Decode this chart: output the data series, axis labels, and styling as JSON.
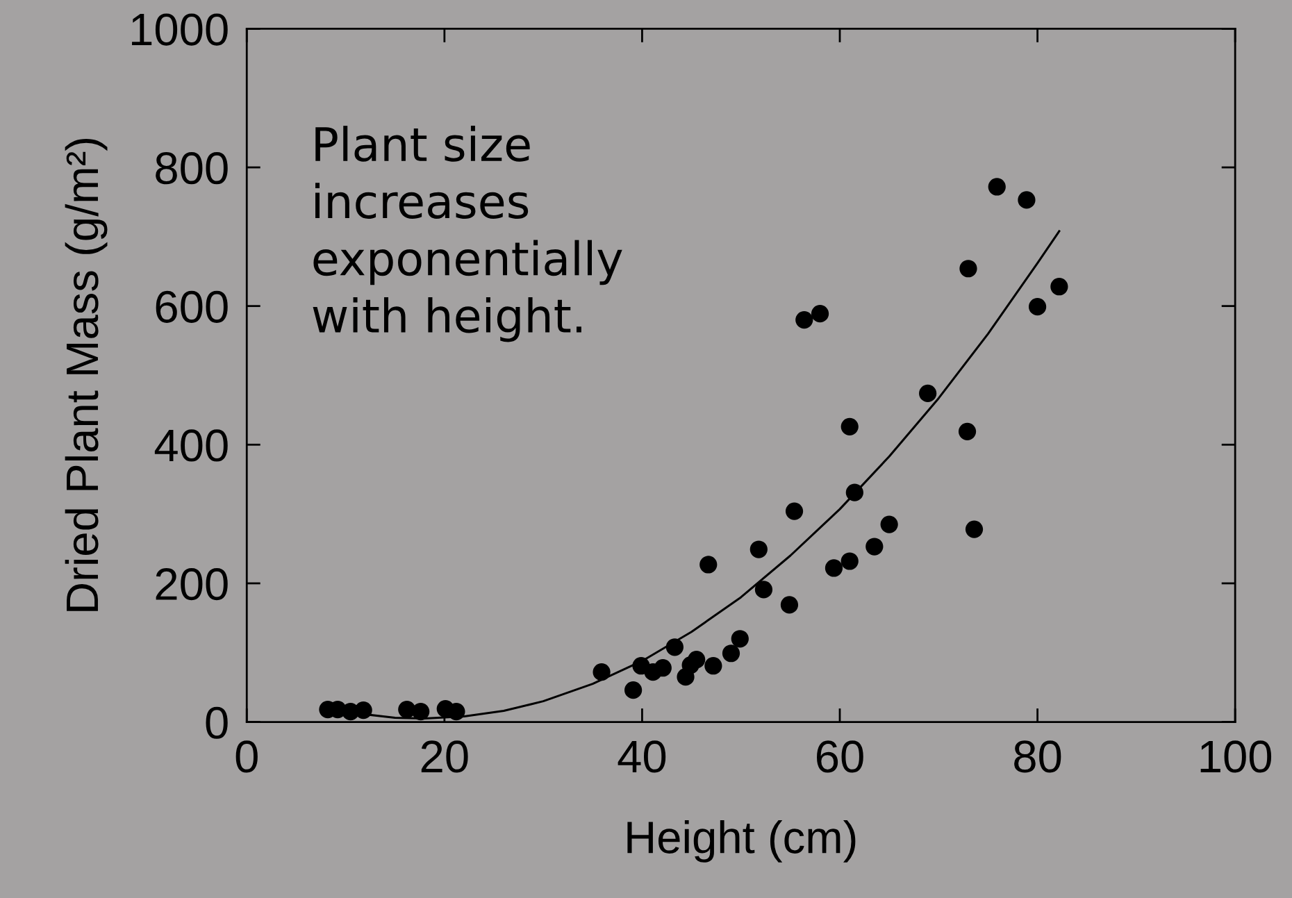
{
  "chart_data": {
    "type": "scatter",
    "xlabel": "Height (cm)",
    "ylabel": "Dried Plant Mass (g/m²)",
    "xlim": [
      0,
      100
    ],
    "xticks": [
      0,
      20,
      40,
      60,
      80,
      100
    ],
    "ylim": [
      0,
      1000
    ],
    "yticks": [
      0,
      200,
      400,
      600,
      800,
      1000
    ],
    "grid": false,
    "legend": false,
    "marker": "circle",
    "annotations": [
      "Plant size\nincreases\nexponentially\nwith height."
    ],
    "series": [
      {
        "color": "#000000",
        "x": [
          8.2,
          9.2,
          10.5,
          11.8,
          16.2,
          17.6,
          20.1,
          21.2,
          35.9,
          39.1,
          39.9,
          41.1,
          42.1,
          43.3,
          44.4,
          44.9,
          45.5,
          46.7,
          47.2,
          49.0,
          49.9,
          51.8,
          52.3,
          54.9,
          55.4,
          56.4,
          58.0,
          59.4,
          61.0,
          61.0,
          61.5,
          63.5,
          65.0,
          68.9,
          72.9,
          73.0,
          73.6,
          75.9,
          78.9,
          80.0,
          82.2
        ],
        "values": [
          18,
          18,
          15,
          17,
          18,
          15,
          19,
          15,
          72,
          46,
          81,
          72,
          78,
          108,
          65,
          82,
          90,
          227,
          81,
          99,
          120,
          249,
          191,
          169,
          304,
          580,
          589,
          222,
          426,
          232,
          331,
          253,
          285,
          474,
          419,
          654,
          278,
          772,
          753,
          599,
          628
        ]
      },
      {
        "type": "line",
        "color": "#000000",
        "marker": "none",
        "line_style": "solid",
        "x": [
          12,
          15,
          18,
          22,
          26,
          30,
          35,
          40,
          45,
          50,
          55,
          60,
          65,
          70,
          75,
          80,
          82.2
        ],
        "values": [
          11,
          6,
          5,
          8,
          16,
          30,
          55,
          88,
          130,
          180,
          240,
          307,
          383,
          467,
          560,
          662,
          708
        ]
      }
    ]
  }
}
